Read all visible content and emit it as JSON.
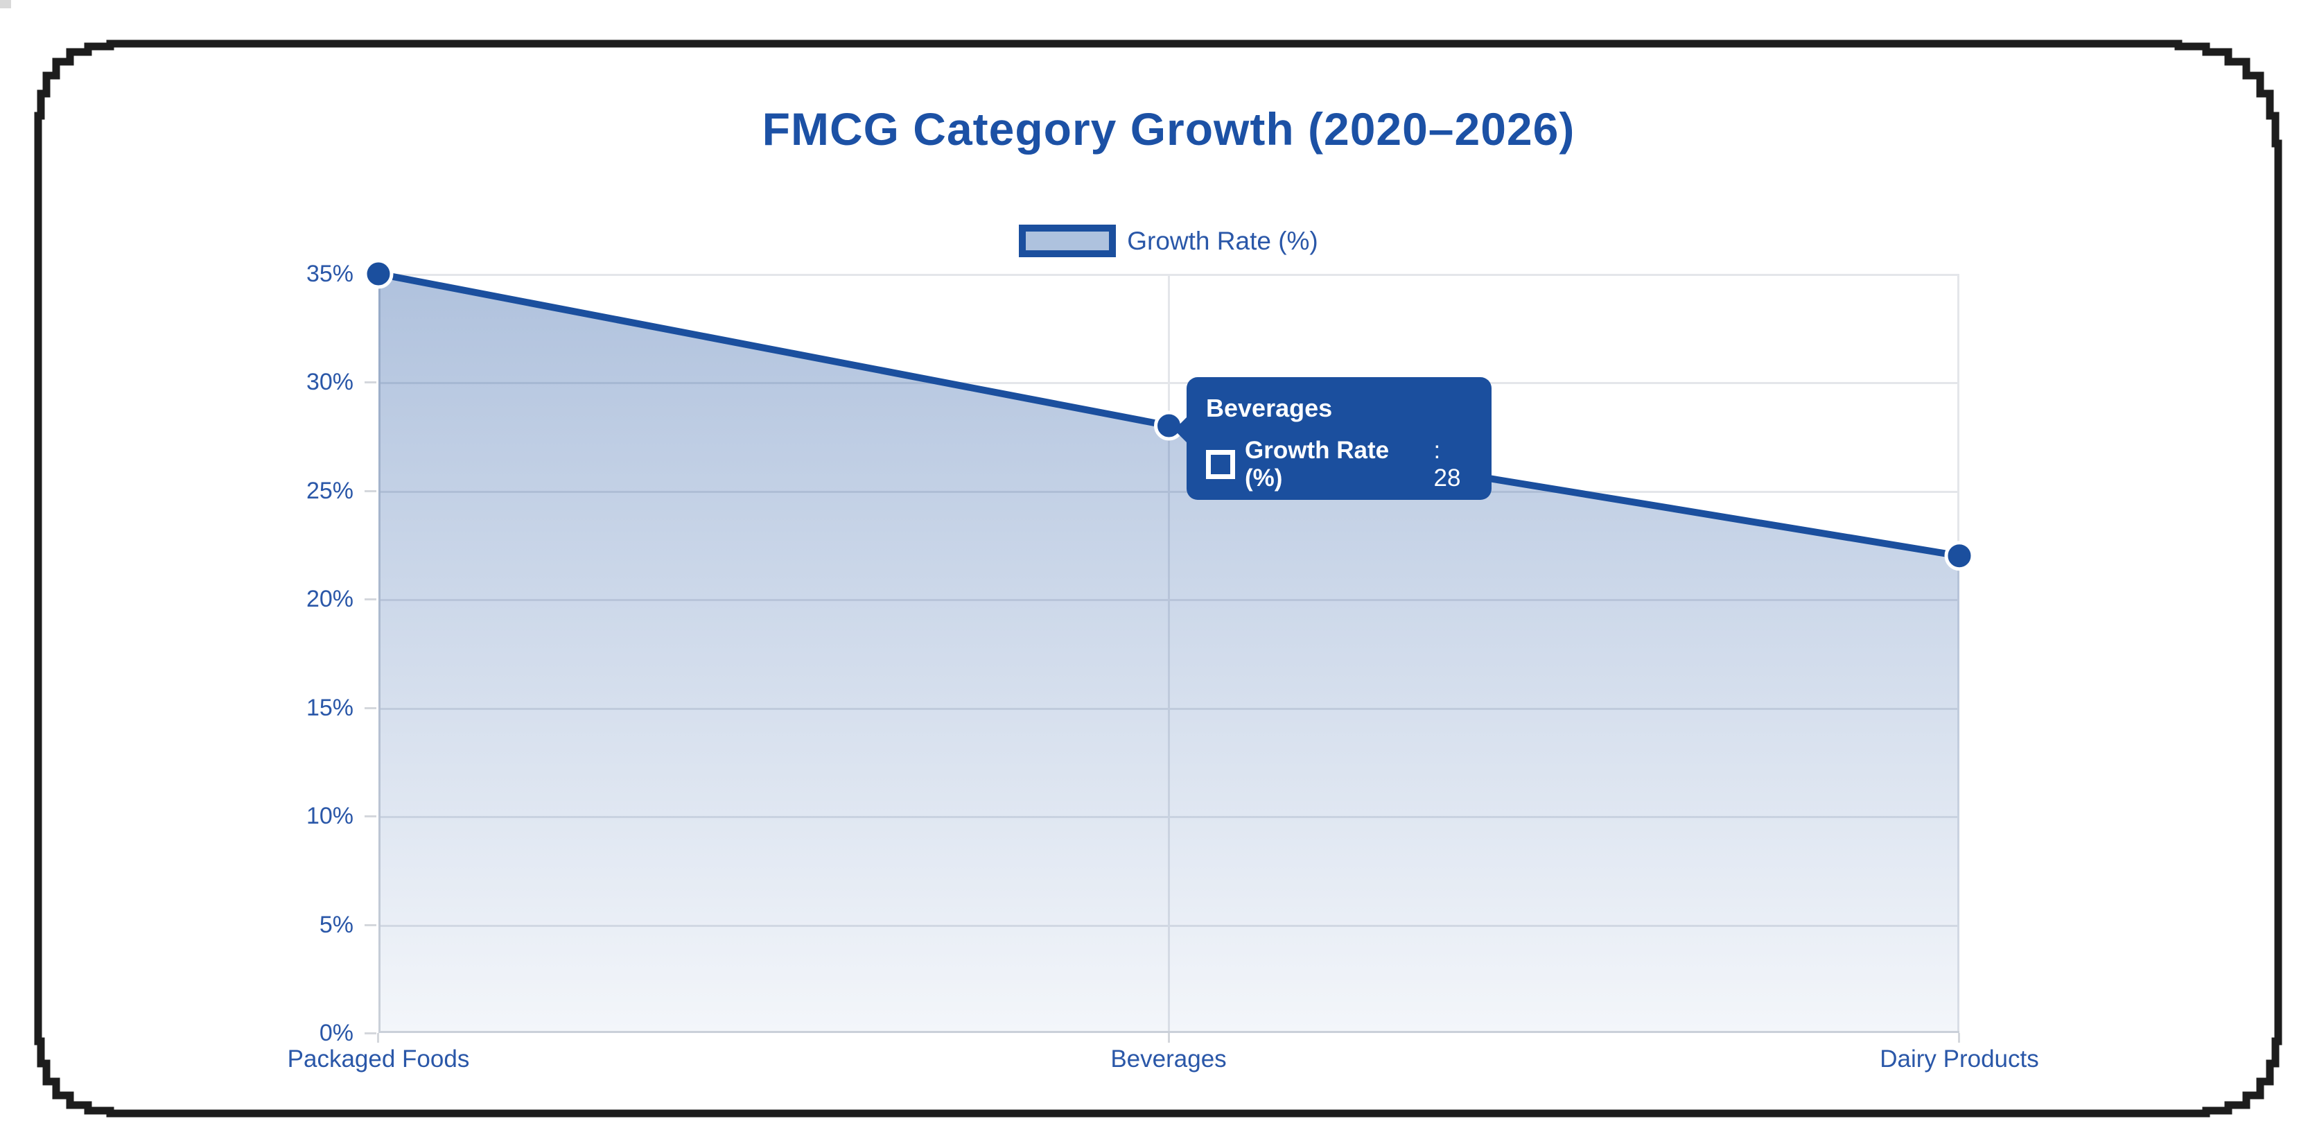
{
  "window": {
    "frame_color": "#1d1d1d",
    "background": "#ffffff"
  },
  "chart_data": {
    "type": "area",
    "title": "FMCG Category Growth (2020–2026)",
    "categories": [
      "Packaged Foods",
      "Beverages",
      "Dairy Products"
    ],
    "series": [
      {
        "name": "Growth Rate (%)",
        "values": [
          35,
          28,
          22
        ]
      }
    ],
    "ylim": [
      0,
      35
    ],
    "ytick_step": 5,
    "y_ticks": [
      "35%",
      "30%",
      "25%",
      "20%",
      "15%",
      "10%",
      "5%",
      "0%"
    ],
    "grid": true,
    "legend_position": "top",
    "colors": {
      "line": "#1b4f9e",
      "point": "#1b4f9e",
      "area_top": "rgba(27,79,158,0.35)",
      "area_bottom": "rgba(27,79,158,0.05)",
      "title": "#1c51a5",
      "axis_label": "#2a57a8",
      "grid": "#e4e6ea"
    }
  },
  "legend": {
    "label": "Growth Rate (%)"
  },
  "tooltip": {
    "title": "Beverages",
    "series_label": "Growth Rate (%)",
    "value_text": ": 28",
    "bg": "#1b4f9e"
  }
}
